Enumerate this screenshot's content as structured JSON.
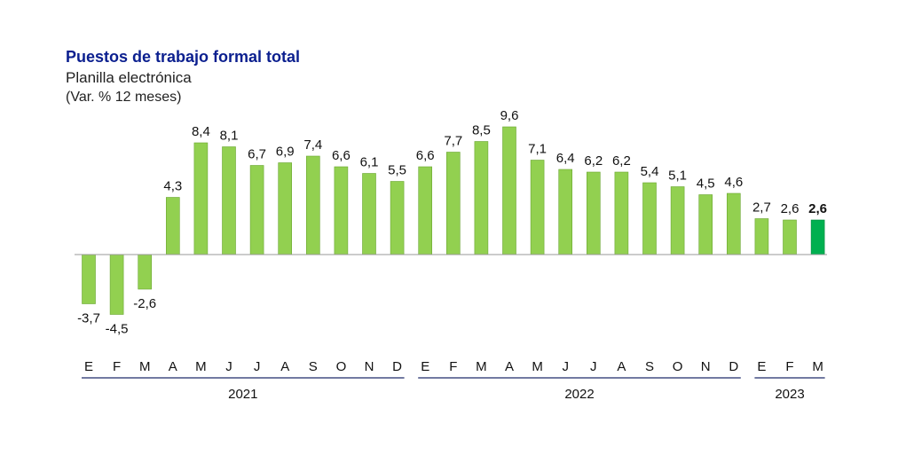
{
  "header": {
    "title": "Puestos de trabajo formal total",
    "subtitle": "Planilla electrónica",
    "unit": "(Var. % 12 meses)"
  },
  "colors": {
    "bar": "#92d050",
    "bar_highlight": "#00b050",
    "bar_stroke": "#6aa631",
    "title": "#0b1f8f",
    "axis": "#999999",
    "year_rule": "#1f2a6b"
  },
  "chart_data": {
    "type": "bar",
    "title": "Puestos de trabajo formal total",
    "subtitle": "Planilla electrónica",
    "ylabel": "(Var. % 12 meses)",
    "xlabel": "",
    "categories": [
      "E",
      "F",
      "M",
      "A",
      "M",
      "J",
      "J",
      "A",
      "S",
      "O",
      "N",
      "D",
      "E",
      "F",
      "M",
      "A",
      "M",
      "J",
      "J",
      "A",
      "S",
      "O",
      "N",
      "D",
      "E",
      "F",
      "M"
    ],
    "values": [
      -3.7,
      -4.5,
      -2.6,
      4.3,
      8.4,
      8.1,
      6.7,
      6.9,
      7.4,
      6.6,
      6.1,
      5.5,
      6.6,
      7.7,
      8.5,
      9.6,
      7.1,
      6.4,
      6.2,
      6.2,
      5.4,
      5.1,
      4.5,
      4.6,
      2.7,
      2.6,
      2.6
    ],
    "labels": [
      "-3,7",
      "-4,5",
      "-2,6",
      "4,3",
      "8,4",
      "8,1",
      "6,7",
      "6,9",
      "7,4",
      "6,6",
      "6,1",
      "5,5",
      "6,6",
      "7,7",
      "8,5",
      "9,6",
      "7,1",
      "6,4",
      "6,2",
      "6,2",
      "5,4",
      "5,1",
      "4,5",
      "4,6",
      "2,7",
      "2,6",
      "2,6"
    ],
    "highlight_index": 26,
    "years": [
      {
        "label": "2021",
        "start": 0,
        "end": 11
      },
      {
        "label": "2022",
        "start": 12,
        "end": 23
      },
      {
        "label": "2023",
        "start": 24,
        "end": 26
      }
    ],
    "ylim": [
      -5,
      10
    ],
    "grid": false,
    "legend": "none"
  }
}
